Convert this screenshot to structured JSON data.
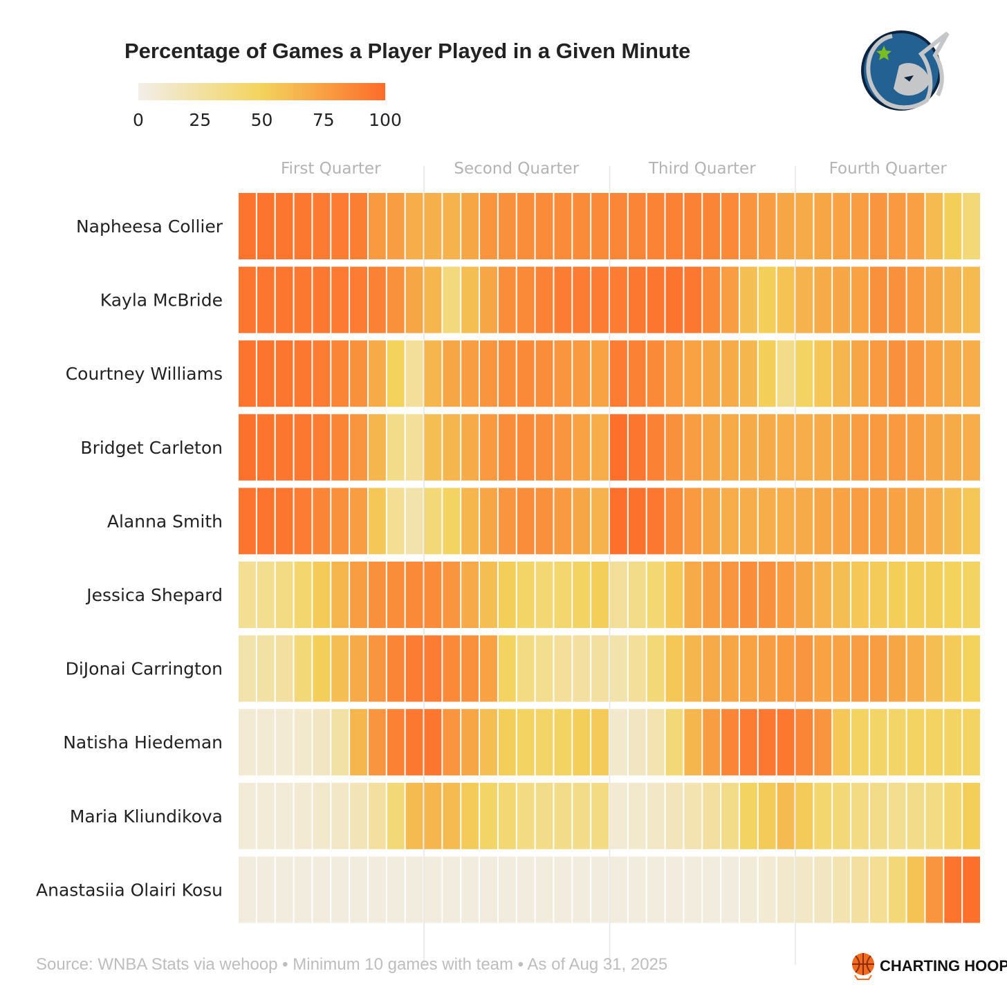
{
  "chart_data": {
    "type": "heatmap",
    "title": "Percentage of Games a Player Played in a Given Minute",
    "legend": {
      "ticks": [
        "0",
        "25",
        "50",
        "75",
        "100"
      ],
      "range": [
        0,
        100
      ],
      "colors": [
        "#f2eee9",
        "#f3d35c",
        "#fd6c2a"
      ],
      "placement": "top-left"
    },
    "x_groups": [
      "First Quarter",
      "Second Quarter",
      "Third Quarter",
      "Fourth Quarter"
    ],
    "minutes_per_group": 10,
    "rows": [
      {
        "name": "Napheesa Collier",
        "values": [
          96,
          96,
          95,
          94,
          93,
          92,
          91,
          78,
          76,
          68,
          67,
          66,
          72,
          80,
          82,
          84,
          85,
          85,
          85,
          86,
          87,
          88,
          89,
          90,
          90,
          88,
          86,
          80,
          76,
          72,
          70,
          72,
          74,
          76,
          80,
          78,
          75,
          62,
          52,
          40
        ]
      },
      {
        "name": "Kayla McBride",
        "values": [
          95,
          95,
          95,
          94,
          94,
          93,
          92,
          90,
          82,
          72,
          64,
          38,
          60,
          72,
          84,
          86,
          90,
          92,
          92,
          92,
          92,
          94,
          95,
          96,
          94,
          86,
          76,
          60,
          52,
          58,
          66,
          70,
          72,
          74,
          82,
          82,
          78,
          72,
          66,
          62
        ]
      },
      {
        "name": "Courtney Williams",
        "values": [
          96,
          96,
          95,
          94,
          92,
          88,
          82,
          70,
          50,
          28,
          64,
          72,
          76,
          80,
          84,
          86,
          84,
          80,
          78,
          74,
          92,
          90,
          86,
          78,
          74,
          72,
          70,
          64,
          52,
          34,
          48,
          56,
          64,
          72,
          78,
          82,
          80,
          74,
          70,
          68
        ]
      },
      {
        "name": "Bridget Carleton",
        "values": [
          97,
          96,
          95,
          94,
          92,
          88,
          80,
          64,
          34,
          28,
          60,
          64,
          70,
          78,
          84,
          86,
          84,
          80,
          74,
          68,
          98,
          95,
          90,
          82,
          76,
          72,
          70,
          70,
          70,
          68,
          68,
          70,
          72,
          76,
          78,
          78,
          76,
          72,
          70,
          68
        ]
      },
      {
        "name": "Alanna Smith",
        "values": [
          96,
          96,
          95,
          92,
          88,
          82,
          76,
          56,
          30,
          22,
          40,
          48,
          64,
          72,
          80,
          84,
          82,
          78,
          72,
          66,
          98,
          97,
          94,
          86,
          78,
          72,
          68,
          68,
          68,
          68,
          70,
          72,
          74,
          76,
          76,
          74,
          72,
          68,
          62,
          56
        ]
      },
      {
        "name": "Jessica Shepard",
        "values": [
          30,
          32,
          36,
          44,
          54,
          64,
          76,
          82,
          84,
          86,
          85,
          80,
          70,
          60,
          52,
          46,
          42,
          44,
          48,
          52,
          28,
          34,
          42,
          56,
          70,
          76,
          80,
          84,
          82,
          78,
          72,
          66,
          60,
          56,
          54,
          52,
          52,
          52,
          50,
          48
        ]
      },
      {
        "name": "DiJonai Carrington",
        "values": [
          22,
          24,
          26,
          40,
          52,
          60,
          70,
          80,
          88,
          92,
          92,
          86,
          82,
          74,
          48,
          36,
          32,
          28,
          26,
          26,
          22,
          28,
          40,
          56,
          64,
          70,
          72,
          74,
          76,
          78,
          80,
          74,
          74,
          76,
          76,
          72,
          68,
          60,
          54,
          50
        ]
      },
      {
        "name": "Natisha Hiedeman",
        "values": [
          8,
          8,
          8,
          10,
          14,
          24,
          64,
          80,
          90,
          94,
          95,
          80,
          72,
          60,
          52,
          48,
          46,
          48,
          52,
          54,
          10,
          14,
          20,
          40,
          64,
          76,
          88,
          92,
          94,
          94,
          88,
          80,
          56,
          48,
          46,
          46,
          48,
          48,
          48,
          48
        ]
      },
      {
        "name": "Maria Kliundikova",
        "values": [
          6,
          6,
          6,
          8,
          10,
          12,
          18,
          26,
          40,
          62,
          64,
          62,
          54,
          46,
          42,
          36,
          34,
          34,
          34,
          36,
          8,
          10,
          12,
          16,
          20,
          26,
          34,
          48,
          54,
          62,
          54,
          44,
          40,
          36,
          34,
          32,
          34,
          36,
          44,
          52
        ]
      },
      {
        "name": "Anastasiia Olairi Kosu",
        "values": [
          4,
          4,
          4,
          4,
          4,
          4,
          4,
          4,
          4,
          4,
          4,
          4,
          4,
          4,
          4,
          4,
          4,
          4,
          4,
          4,
          4,
          4,
          4,
          4,
          4,
          4,
          4,
          6,
          8,
          10,
          12,
          14,
          20,
          26,
          30,
          40,
          58,
          80,
          96,
          98
        ]
      }
    ]
  },
  "footer": {
    "source": "Source: WNBA Stats via wehoop • Minimum 10 games with team • As of Aug 31, 2025",
    "brand": "CHARTING HOOPS"
  },
  "logo": {
    "name": "lynx-logo",
    "colors": {
      "navy": "#236192",
      "dark": "#0c2340",
      "silver": "#c4c6c8",
      "star": "#78be20"
    }
  },
  "brand_icon": "basketball-icon"
}
